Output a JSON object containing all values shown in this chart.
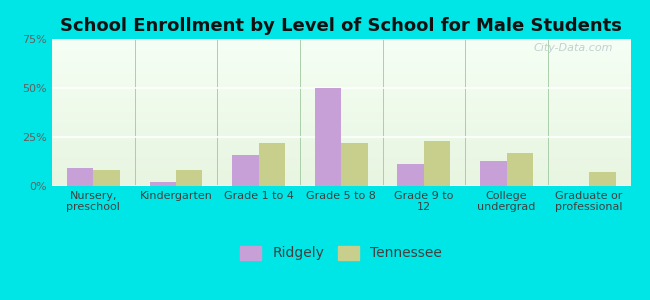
{
  "title": "School Enrollment by Level of School for Male Students",
  "categories": [
    "Nursery,\npreschool",
    "Kindergarten",
    "Grade 1 to 4",
    "Grade 5 to 8",
    "Grade 9 to\n12",
    "College\nundergrad",
    "Graduate or\nprofessional"
  ],
  "ridgely": [
    9,
    2,
    16,
    50,
    11,
    13,
    0
  ],
  "tennessee": [
    8,
    8,
    22,
    22,
    23,
    17,
    7
  ],
  "ridgely_color": "#c8a0d8",
  "tennessee_color": "#c8cf8c",
  "background_color": "#00e5e5",
  "ylim": [
    0,
    75
  ],
  "yticks": [
    0,
    25,
    50,
    75
  ],
  "ytick_labels": [
    "0%",
    "25%",
    "50%",
    "75%"
  ],
  "title_fontsize": 13,
  "tick_fontsize": 8,
  "legend_fontsize": 10,
  "bar_width": 0.32,
  "watermark": "City-Data.com"
}
